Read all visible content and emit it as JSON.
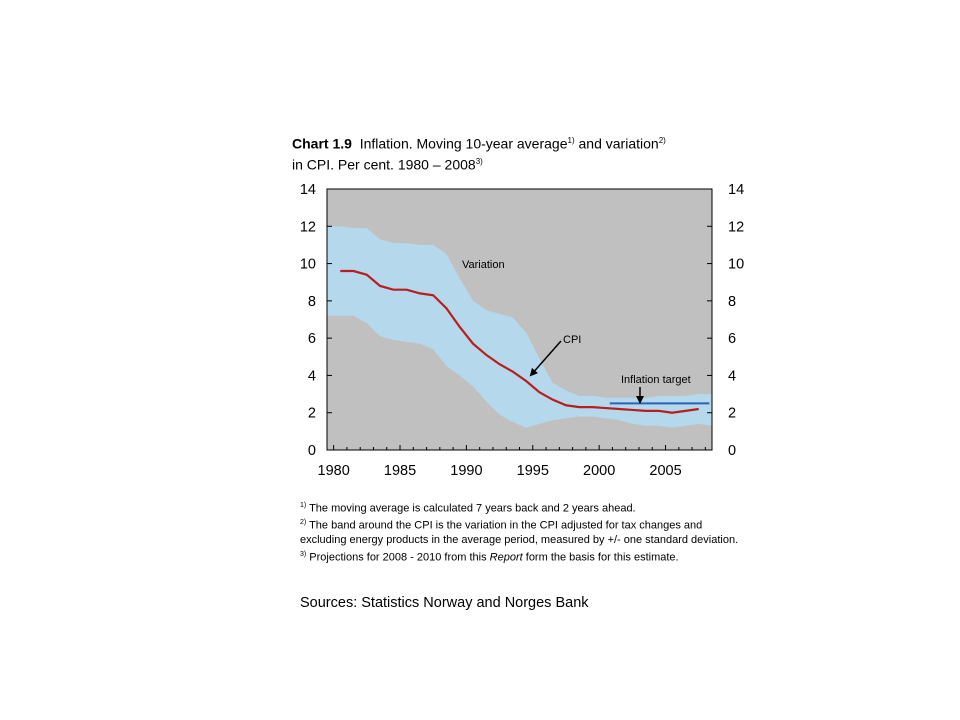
{
  "title": {
    "chart_no": "Chart 1.9",
    "text_a": "Inflation. Moving 10-year average",
    "ref_a": "1)",
    "text_b": " and variation",
    "ref_b": "2)",
    "text_c": "in CPI. Per cent. 1980 – 2008",
    "ref_c": "3)"
  },
  "notes": [
    {
      "ref": "1)",
      "text": " The moving average is calculated 7 years back and 2 years ahead."
    },
    {
      "ref": "2)",
      "text": " The band around the CPI is the variation in the CPI adjusted for tax changes and excluding energy products in the average period, measured by +/- one standard deviation."
    },
    {
      "ref": "3)",
      "text_a": " Projections for 2008 - 2010 from this ",
      "italic": "Report",
      "text_b": " form the basis for this estimate."
    }
  ],
  "sources": "Sources: Statistics Norway and Norges Bank",
  "chart_data": {
    "type": "area",
    "x_ticks": [
      "1980",
      "1985",
      "1990",
      "1995",
      "2000",
      "2005"
    ],
    "y_ticks": [
      "0",
      "2",
      "4",
      "6",
      "8",
      "10",
      "12",
      "14"
    ],
    "xlim": [
      1979.5,
      2008.5
    ],
    "ylim": [
      0,
      14
    ],
    "grid": false,
    "annotations": {
      "variation": "Variation",
      "cpi": "CPI",
      "target": "Inflation target"
    },
    "colors": {
      "background": "#c0c0c0",
      "band": "#b5d8ec",
      "cpi": "#b81e1e",
      "target": "#2a62b8"
    },
    "x": [
      1979.5,
      1980.5,
      1981.5,
      1982.5,
      1983.5,
      1984.5,
      1985.5,
      1986.5,
      1987.5,
      1988.5,
      1989.5,
      1990.5,
      1991.5,
      1992.5,
      1993.5,
      1994.5,
      1995.5,
      1996.5,
      1997.5,
      1998.5,
      1999.5,
      2000.5,
      2001.5,
      2002.5,
      2003.5,
      2004.5,
      2005.5,
      2006.5,
      2007.5,
      2008.5
    ],
    "series": [
      {
        "name": "CPI",
        "values": [
          9.6,
          9.6,
          9.6,
          9.4,
          8.8,
          8.6,
          8.6,
          8.4,
          8.3,
          7.6,
          6.6,
          5.7,
          5.1,
          4.6,
          4.2,
          3.7,
          3.1,
          2.7,
          2.4,
          2.3,
          2.3,
          2.25,
          2.2,
          2.15,
          2.1,
          2.1,
          2.0,
          2.1,
          2.2,
          2.2
        ]
      },
      {
        "name": "Variation upper",
        "values": [
          12.0,
          12.0,
          11.9,
          11.9,
          11.3,
          11.1,
          11.1,
          11.0,
          11.0,
          10.5,
          9.2,
          8.0,
          7.5,
          7.3,
          7.1,
          6.3,
          4.9,
          3.6,
          3.2,
          2.9,
          2.9,
          2.8,
          2.8,
          2.8,
          2.8,
          2.9,
          2.9,
          2.9,
          3.0,
          3.0
        ]
      },
      {
        "name": "Variation lower",
        "values": [
          7.2,
          7.2,
          7.2,
          6.8,
          6.1,
          5.9,
          5.8,
          5.7,
          5.4,
          4.5,
          4.0,
          3.4,
          2.6,
          1.9,
          1.5,
          1.2,
          1.4,
          1.6,
          1.7,
          1.8,
          1.8,
          1.7,
          1.6,
          1.4,
          1.3,
          1.3,
          1.2,
          1.3,
          1.4,
          1.3
        ]
      },
      {
        "name": "Inflation target",
        "x": [
          2000.8,
          2008.3
        ],
        "values": [
          2.5,
          2.5
        ]
      }
    ]
  }
}
